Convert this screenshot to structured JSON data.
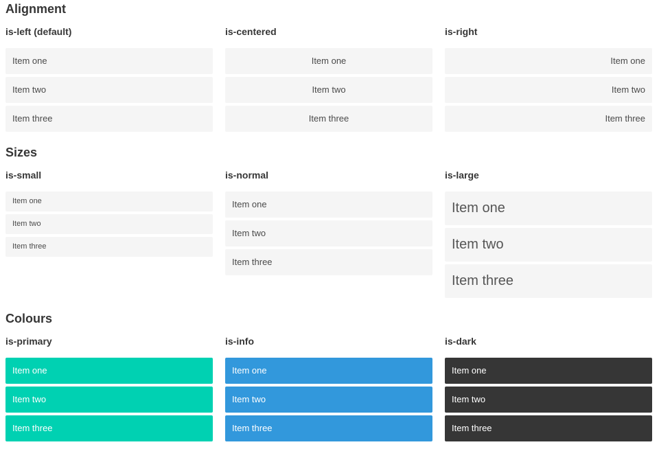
{
  "colors": {
    "primary": "#00d1b2",
    "info": "#3298dc",
    "dark": "#363636",
    "item_bg": "#f5f5f5"
  },
  "sections": [
    {
      "title": "Alignment",
      "columns": [
        {
          "heading": "is-left (default)",
          "variant": "left",
          "items": [
            "Item one",
            "Item two",
            "Item three"
          ]
        },
        {
          "heading": "is-centered",
          "variant": "centered",
          "items": [
            "Item one",
            "Item two",
            "Item three"
          ]
        },
        {
          "heading": "is-right",
          "variant": "right",
          "items": [
            "Item one",
            "Item two",
            "Item three"
          ]
        }
      ]
    },
    {
      "title": "Sizes",
      "columns": [
        {
          "heading": "is-small",
          "variant": "small",
          "items": [
            "Item one",
            "Item two",
            "Item three"
          ]
        },
        {
          "heading": "is-normal",
          "variant": "normal",
          "items": [
            "Item one",
            "Item two",
            "Item three"
          ]
        },
        {
          "heading": "is-large",
          "variant": "large",
          "items": [
            "Item one",
            "Item two",
            "Item three"
          ]
        }
      ]
    },
    {
      "title": "Colours",
      "columns": [
        {
          "heading": "is-primary",
          "variant": "primary",
          "items": [
            "Item one",
            "Item two",
            "Item three"
          ]
        },
        {
          "heading": "is-info",
          "variant": "info",
          "items": [
            "Item one",
            "Item two",
            "Item three"
          ]
        },
        {
          "heading": "is-dark",
          "variant": "dark",
          "items": [
            "Item one",
            "Item two",
            "Item three"
          ]
        }
      ]
    }
  ]
}
